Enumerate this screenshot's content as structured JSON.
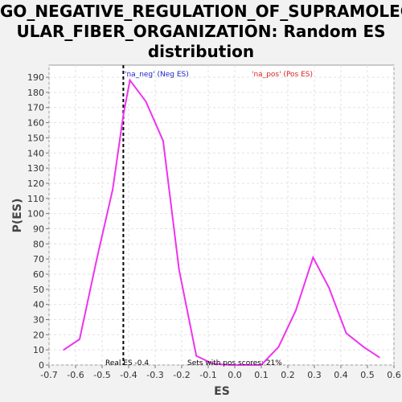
{
  "title_lines": [
    "GO_NEGATIVE_REGULATION_OF_SUPRAMOLEC",
    "ULAR_FIBER_ORGANIZATION: Random ES",
    "distribution"
  ],
  "colors": {
    "curve": "#ee33ee",
    "neg": "#2222cc",
    "pos": "#dd2222",
    "real_es_line": "#000000"
  },
  "chart_data": {
    "type": "line",
    "title": "GO_NEGATIVE_REGULATION_OF_SUPRAMOLECULAR_FIBER_ORGANIZATION: Random ES distribution",
    "xlabel": "ES",
    "ylabel": "P(ES)",
    "xlim": [
      -0.7,
      0.6
    ],
    "ylim": [
      0,
      198
    ],
    "grid": true,
    "x_ticks": [
      -0.7,
      -0.6,
      -0.5,
      -0.4,
      -0.3,
      -0.2,
      -0.1,
      0.0,
      0.1,
      0.2,
      0.3,
      0.4,
      0.5,
      0.6
    ],
    "x_tick_labels": [
      "-0.7",
      "-0.6",
      "-0.5",
      "-0.4",
      "-0.3",
      "-0.2",
      "-0.1",
      "0.0",
      "0.1",
      "0.2",
      "0.3",
      "0.4",
      "0.5",
      "0.6"
    ],
    "y_ticks": [
      0,
      10,
      20,
      30,
      40,
      50,
      60,
      70,
      80,
      90,
      100,
      110,
      120,
      130,
      140,
      150,
      160,
      170,
      180,
      190
    ],
    "series": [
      {
        "x": [
          -0.645,
          -0.585,
          -0.52,
          -0.46,
          -0.42,
          -0.395,
          -0.335,
          -0.27,
          -0.21,
          -0.145,
          -0.085,
          -0.02,
          0.04,
          0.1,
          0.165,
          0.23,
          0.295,
          0.355,
          0.42,
          0.485,
          0.545
        ],
        "y": [
          10,
          17,
          70,
          116,
          165,
          188,
          174,
          148,
          63,
          6,
          1,
          0,
          0,
          0,
          12,
          36,
          71,
          51,
          21,
          12,
          5
        ]
      }
    ],
    "real_es": -0.42,
    "legend": {
      "neg": "'na_neg' (Neg ES)",
      "pos": "'na_pos' (Pos ES)"
    },
    "annotations": {
      "real_es": "Real ES -0.4",
      "pos_scores": "Sets with pos scores: 21%"
    }
  }
}
